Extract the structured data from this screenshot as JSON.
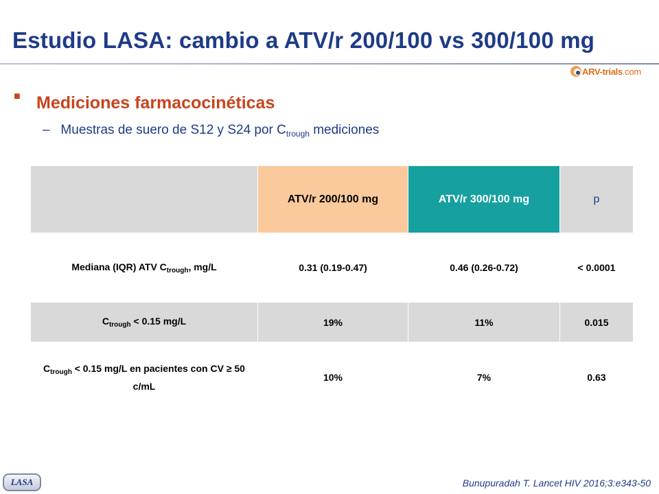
{
  "slide": {
    "title": "Estudio LASA: cambio a ATV/r 200/100 vs 300/100 mg",
    "logo_text": "ARV-trials",
    "logo_domain": ".com",
    "bullet_heading": "Mediciones farmacocinéticas",
    "sub_bullet": {
      "dash": "–",
      "prefix": "Muestras de suero de S12 y S24 por C",
      "sub": "trough",
      "suffix": " mediciones"
    },
    "footer_tag": "LASA",
    "reference": "Bunupuradah T. Lancet HIV 2016;3:e343-50"
  },
  "table": {
    "headers": [
      "ATV/r 200/100 mg",
      "ATV/r 300/100 mg",
      "p"
    ],
    "rows": [
      {
        "label_pre": "Mediana (IQR) ATV C",
        "label_sub": "trough",
        "label_post": ", mg/L",
        "a": "0.31 (0.19-0.47)",
        "b": "0.46 (0.26-0.72)",
        "p": "< 0.0001"
      },
      {
        "label_pre": "C",
        "label_sub": "trough",
        "label_post": " < 0.15 mg/L",
        "a": "19%",
        "b": "11%",
        "p": "0.015"
      },
      {
        "label_pre": "C",
        "label_sub": "trough",
        "label_post": " < 0.15 mg/L en pacientes con CV ≥ 50 c/mL",
        "a": "10%",
        "b": "7%",
        "p": "0.63"
      }
    ]
  },
  "colors": {
    "title": "#1f3b87",
    "accent": "#c8441e",
    "header_200": "#fbca9c",
    "header_300": "#17a0a0",
    "row_gray": "#d9d9d9"
  }
}
